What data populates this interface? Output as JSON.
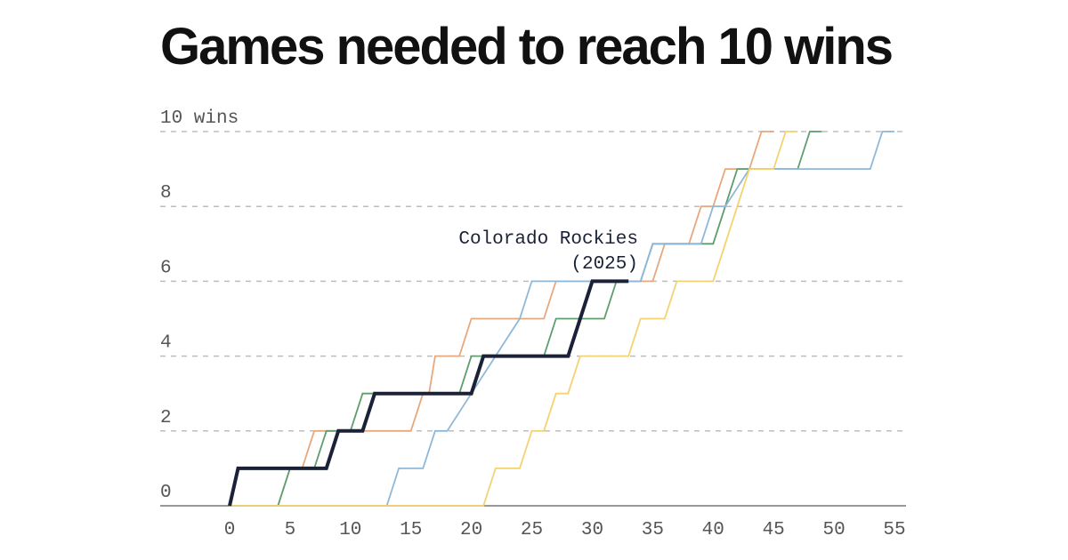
{
  "title": "Games needed to reach 10 wins",
  "chart_data": {
    "type": "line",
    "title": "Games needed to reach 10 wins",
    "xlabel": "",
    "ylabel": "",
    "xlim": [
      0,
      55
    ],
    "ylim": [
      0,
      10
    ],
    "x_ticks": [
      0,
      5,
      10,
      15,
      20,
      25,
      30,
      35,
      40,
      45,
      50,
      55
    ],
    "y_ticks": [
      {
        "value": 0,
        "label": "0"
      },
      {
        "value": 2,
        "label": "2"
      },
      {
        "value": 4,
        "label": "4"
      },
      {
        "value": 6,
        "label": "6"
      },
      {
        "value": 8,
        "label": "8"
      },
      {
        "value": 10,
        "label": "10 wins"
      }
    ],
    "grid": "horizontal dashed",
    "annotation": {
      "line1": "Colorado Rockies",
      "line2": "(2025)"
    },
    "series": [
      {
        "color": "#e8a87c",
        "highlight": false,
        "points": [
          [
            0,
            0
          ],
          [
            4,
            0
          ],
          [
            5,
            1
          ],
          [
            6,
            1
          ],
          [
            7,
            2
          ],
          [
            9,
            2
          ],
          [
            10,
            2
          ],
          [
            15,
            2
          ],
          [
            16,
            3
          ],
          [
            16.5,
            3
          ],
          [
            17,
            4
          ],
          [
            19,
            4
          ],
          [
            20,
            5
          ],
          [
            26,
            5
          ],
          [
            27,
            6
          ],
          [
            35,
            6
          ],
          [
            36,
            7
          ],
          [
            38,
            7
          ],
          [
            39,
            8
          ],
          [
            40,
            8
          ],
          [
            41,
            9
          ],
          [
            43,
            9
          ],
          [
            44,
            10
          ],
          [
            45,
            10
          ]
        ]
      },
      {
        "color": "#5e9e6e",
        "highlight": false,
        "points": [
          [
            0,
            0
          ],
          [
            4,
            0
          ],
          [
            5,
            1
          ],
          [
            7,
            1
          ],
          [
            8,
            2
          ],
          [
            10,
            2
          ],
          [
            11,
            3
          ],
          [
            12,
            3
          ],
          [
            13,
            3
          ],
          [
            19,
            3
          ],
          [
            20,
            4
          ],
          [
            26,
            4
          ],
          [
            27,
            5
          ],
          [
            31,
            5
          ],
          [
            32,
            6
          ],
          [
            34,
            6
          ],
          [
            35,
            7
          ],
          [
            40,
            7
          ],
          [
            41,
            8
          ],
          [
            42,
            9
          ],
          [
            47,
            9
          ],
          [
            48,
            10
          ],
          [
            49,
            10
          ]
        ]
      },
      {
        "color": "#8fb8d8",
        "highlight": false,
        "points": [
          [
            0,
            0
          ],
          [
            13,
            0
          ],
          [
            14,
            1
          ],
          [
            16,
            1
          ],
          [
            17,
            2
          ],
          [
            18,
            2
          ],
          [
            20,
            3
          ],
          [
            22,
            4
          ],
          [
            24,
            5
          ],
          [
            25,
            6
          ],
          [
            32,
            6
          ],
          [
            33,
            6
          ],
          [
            34,
            6
          ],
          [
            35,
            7
          ],
          [
            39,
            7
          ],
          [
            40,
            8
          ],
          [
            41,
            8
          ],
          [
            43,
            9
          ],
          [
            53,
            9
          ],
          [
            54,
            10
          ],
          [
            55,
            10
          ]
        ]
      },
      {
        "color": "#f5d270",
        "highlight": false,
        "points": [
          [
            0,
            0
          ],
          [
            21,
            0
          ],
          [
            22,
            1
          ],
          [
            24,
            1
          ],
          [
            25,
            2
          ],
          [
            26,
            2
          ],
          [
            27,
            3
          ],
          [
            28,
            3
          ],
          [
            29,
            4
          ],
          [
            33,
            4
          ],
          [
            34,
            5
          ],
          [
            36,
            5
          ],
          [
            37,
            6
          ],
          [
            40,
            6
          ],
          [
            41,
            7
          ],
          [
            42,
            8
          ],
          [
            43,
            9
          ],
          [
            45,
            9
          ],
          [
            46,
            10
          ],
          [
            47,
            10
          ]
        ]
      },
      {
        "name": "Colorado Rockies (2025)",
        "color": "#1b2138",
        "highlight": true,
        "points": [
          [
            0,
            0
          ],
          [
            0.7,
            1
          ],
          [
            8,
            1
          ],
          [
            9,
            2
          ],
          [
            11,
            2
          ],
          [
            12,
            3
          ],
          [
            20,
            3
          ],
          [
            21,
            4
          ],
          [
            28,
            4
          ],
          [
            30,
            6
          ],
          [
            33,
            6
          ]
        ]
      }
    ]
  }
}
